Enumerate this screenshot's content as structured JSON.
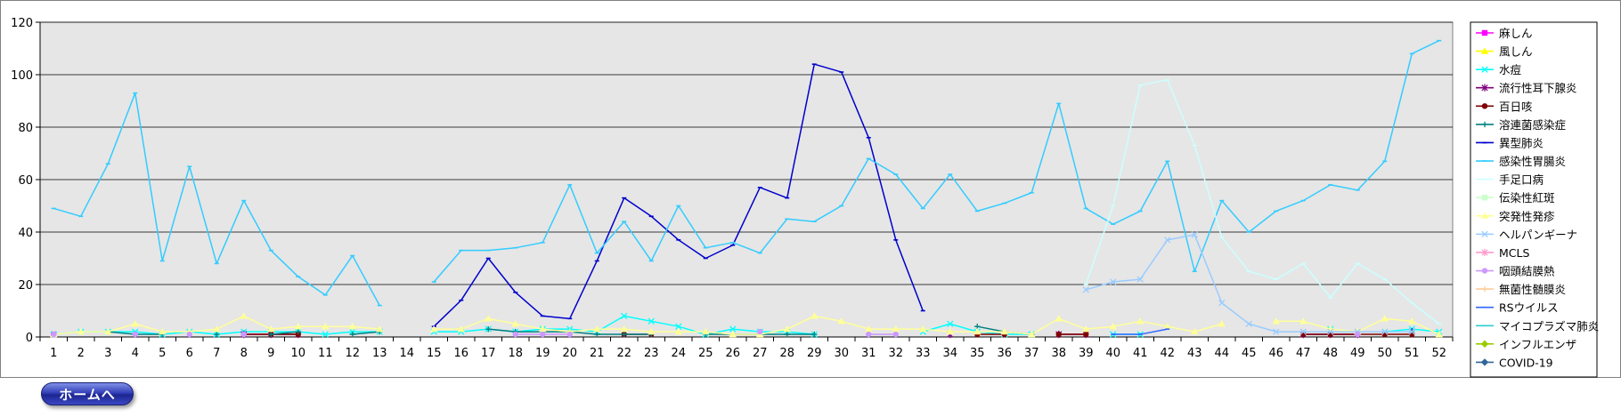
{
  "chart_data": {
    "type": "line",
    "x": [
      1,
      2,
      3,
      4,
      5,
      6,
      7,
      8,
      9,
      10,
      11,
      12,
      13,
      14,
      15,
      16,
      17,
      18,
      19,
      20,
      21,
      22,
      23,
      24,
      25,
      26,
      27,
      28,
      29,
      30,
      31,
      32,
      33,
      34,
      35,
      36,
      37,
      38,
      39,
      40,
      41,
      42,
      43,
      44,
      45,
      46,
      47,
      48,
      49,
      50,
      51,
      52
    ],
    "ylim": [
      0,
      120
    ],
    "yticks": [
      0,
      20,
      40,
      60,
      80,
      100,
      120
    ],
    "grid": true,
    "legend_position": "right",
    "series": [
      {
        "name": "麻しん",
        "color": "#ff00ff",
        "marker": "square",
        "values": [
          1,
          null,
          null,
          null,
          null,
          null,
          null,
          null,
          null,
          null,
          null,
          null,
          null,
          null,
          null,
          null,
          null,
          null,
          null,
          null,
          null,
          null,
          null,
          null,
          null,
          null,
          null,
          null,
          null,
          null,
          null,
          null,
          null,
          null,
          null,
          null,
          null,
          null,
          null,
          null,
          null,
          null,
          null,
          null,
          null,
          null,
          null,
          null,
          null,
          null,
          null,
          null
        ]
      },
      {
        "name": "風しん",
        "color": "#ffff00",
        "marker": "triangle",
        "values": [
          null,
          null,
          null,
          null,
          null,
          null,
          null,
          null,
          null,
          null,
          null,
          null,
          null,
          null,
          null,
          null,
          null,
          null,
          null,
          null,
          null,
          null,
          null,
          null,
          null,
          null,
          null,
          null,
          null,
          null,
          null,
          null,
          null,
          null,
          null,
          null,
          null,
          null,
          null,
          null,
          null,
          null,
          null,
          null,
          null,
          null,
          null,
          null,
          null,
          null,
          null,
          null
        ]
      },
      {
        "name": "水痘",
        "color": "#00ffff",
        "marker": "x",
        "values": [
          1,
          2,
          2,
          2,
          1,
          2,
          1,
          2,
          2,
          2,
          1,
          2,
          2,
          null,
          2,
          2,
          3,
          2,
          3,
          3,
          2,
          8,
          6,
          4,
          1,
          3,
          2,
          2,
          1,
          null,
          null,
          null,
          2,
          5,
          2,
          1,
          1,
          null,
          null,
          1,
          1,
          null,
          null,
          null,
          null,
          null,
          null,
          3,
          null,
          2,
          3,
          2
        ]
      },
      {
        "name": "流行性耳下腺炎",
        "color": "#800080",
        "marker": "star",
        "values": [
          null,
          null,
          null,
          null,
          null,
          null,
          null,
          1,
          1,
          1,
          null,
          null,
          null,
          null,
          null,
          null,
          null,
          null,
          null,
          null,
          null,
          null,
          null,
          null,
          null,
          null,
          null,
          null,
          null,
          null,
          null,
          null,
          null,
          1,
          null,
          null,
          null,
          1,
          1,
          null,
          null,
          null,
          null,
          null,
          null,
          null,
          1,
          1,
          1,
          null,
          2,
          null
        ]
      },
      {
        "name": "百日咳",
        "color": "#800000",
        "marker": "circle",
        "values": [
          null,
          null,
          null,
          null,
          null,
          null,
          null,
          1,
          1,
          1,
          null,
          null,
          null,
          null,
          null,
          null,
          null,
          null,
          null,
          null,
          null,
          1,
          1,
          null,
          null,
          null,
          null,
          null,
          null,
          null,
          null,
          null,
          null,
          null,
          1,
          1,
          null,
          1,
          1,
          null,
          null,
          null,
          null,
          null,
          null,
          null,
          1,
          1,
          1,
          1,
          1,
          null
        ]
      },
      {
        "name": "溶連菌感染症",
        "color": "#008080",
        "marker": "plus",
        "values": [
          null,
          null,
          2,
          1,
          1,
          null,
          1,
          null,
          1,
          2,
          null,
          1,
          2,
          null,
          null,
          null,
          3,
          2,
          2,
          2,
          1,
          1,
          1,
          null,
          1,
          1,
          1,
          1,
          1,
          null,
          null,
          null,
          null,
          null,
          4,
          2,
          1,
          null,
          null,
          null,
          null,
          null,
          null,
          null,
          null,
          null,
          null,
          null,
          null,
          null,
          null,
          null
        ]
      },
      {
        "name": "異型肺炎",
        "color": "#0000cd",
        "marker": "dash",
        "values": [
          null,
          null,
          null,
          null,
          null,
          null,
          null,
          null,
          null,
          null,
          null,
          null,
          null,
          null,
          4,
          14,
          30,
          17,
          8,
          7,
          29,
          53,
          46,
          37,
          30,
          35,
          57,
          53,
          104,
          101,
          76,
          37,
          10,
          null,
          null,
          null,
          null,
          null,
          null,
          null,
          null,
          null,
          null,
          null,
          null,
          null,
          null,
          null,
          null,
          null,
          null,
          null
        ]
      },
      {
        "name": "感染性胃腸炎",
        "color": "#33ccff",
        "marker": "dash",
        "values": [
          49,
          46,
          66,
          93,
          29,
          65,
          28,
          52,
          33,
          23,
          16,
          31,
          12,
          null,
          21,
          33,
          33,
          34,
          36,
          58,
          32,
          44,
          29,
          50,
          34,
          36,
          32,
          45,
          44,
          50,
          68,
          62,
          49,
          62,
          48,
          51,
          55,
          89,
          49,
          43,
          48,
          67,
          25,
          52,
          40,
          48,
          52,
          58,
          56,
          67,
          108,
          113
        ]
      },
      {
        "name": "手足口病",
        "color": "#ccffff",
        "marker": "dash",
        "values": [
          null,
          null,
          null,
          null,
          null,
          null,
          null,
          null,
          null,
          null,
          null,
          null,
          null,
          null,
          null,
          null,
          null,
          null,
          null,
          null,
          null,
          null,
          null,
          null,
          null,
          null,
          null,
          null,
          null,
          null,
          null,
          null,
          null,
          null,
          null,
          null,
          null,
          null,
          20,
          50,
          96,
          98,
          73,
          38,
          25,
          22,
          28,
          15,
          28,
          22,
          13,
          5
        ]
      },
      {
        "name": "伝染性紅斑",
        "color": "#ccffcc",
        "marker": "square",
        "values": [
          null,
          null,
          null,
          null,
          null,
          null,
          null,
          null,
          null,
          null,
          null,
          null,
          null,
          null,
          null,
          null,
          null,
          null,
          null,
          null,
          null,
          null,
          null,
          null,
          null,
          null,
          null,
          null,
          null,
          null,
          null,
          null,
          null,
          null,
          null,
          null,
          null,
          null,
          null,
          null,
          null,
          null,
          null,
          null,
          null,
          null,
          null,
          null,
          null,
          null,
          null,
          null
        ]
      },
      {
        "name": "突発性発疹",
        "color": "#ffff99",
        "marker": "triangle",
        "values": [
          1,
          2,
          2,
          5,
          2,
          2,
          3,
          8,
          3,
          4,
          4,
          4,
          3,
          null,
          3,
          3,
          7,
          5,
          3,
          2,
          3,
          3,
          2,
          2,
          2,
          1,
          1,
          3,
          8,
          6,
          3,
          3,
          3,
          2,
          2,
          2,
          1,
          7,
          3,
          4,
          6,
          4,
          2,
          5,
          null,
          6,
          6,
          3,
          2,
          7,
          6,
          1
        ]
      },
      {
        "name": "ヘルパンギーナ",
        "color": "#99ccff",
        "marker": "x",
        "values": [
          null,
          null,
          null,
          null,
          null,
          null,
          null,
          null,
          null,
          null,
          null,
          null,
          null,
          null,
          null,
          null,
          null,
          null,
          null,
          null,
          null,
          null,
          null,
          null,
          null,
          null,
          null,
          null,
          null,
          null,
          null,
          null,
          null,
          null,
          null,
          null,
          null,
          null,
          18,
          21,
          22,
          37,
          39,
          13,
          5,
          2,
          2,
          2,
          2,
          2,
          2,
          null
        ]
      },
      {
        "name": "MCLS",
        "color": "#ff99cc",
        "marker": "star",
        "values": [
          null,
          null,
          null,
          null,
          null,
          null,
          null,
          null,
          null,
          null,
          null,
          null,
          null,
          null,
          null,
          null,
          null,
          null,
          null,
          null,
          null,
          null,
          null,
          null,
          null,
          null,
          null,
          null,
          null,
          null,
          null,
          null,
          null,
          null,
          null,
          null,
          null,
          null,
          null,
          null,
          null,
          null,
          null,
          null,
          null,
          null,
          null,
          null,
          null,
          null,
          null,
          null
        ]
      },
      {
        "name": "咽頭結膜熱",
        "color": "#cc99ff",
        "marker": "circle",
        "values": [
          1,
          null,
          null,
          1,
          null,
          1,
          null,
          1,
          null,
          null,
          null,
          null,
          null,
          null,
          null,
          null,
          null,
          1,
          1,
          1,
          null,
          null,
          null,
          null,
          null,
          null,
          2,
          null,
          null,
          null,
          1,
          1,
          null,
          null,
          null,
          null,
          null,
          null,
          null,
          null,
          null,
          null,
          null,
          null,
          null,
          null,
          null,
          null,
          1,
          null,
          null,
          null
        ]
      },
      {
        "name": "無菌性髄膜炎",
        "color": "#ffcc99",
        "marker": "plus",
        "values": [
          null,
          null,
          null,
          null,
          null,
          null,
          null,
          null,
          null,
          null,
          null,
          null,
          null,
          null,
          null,
          null,
          null,
          null,
          null,
          null,
          null,
          null,
          null,
          null,
          null,
          null,
          null,
          null,
          null,
          null,
          null,
          null,
          null,
          null,
          null,
          null,
          null,
          null,
          null,
          null,
          null,
          null,
          null,
          null,
          null,
          null,
          null,
          null,
          null,
          null,
          null,
          null
        ]
      },
      {
        "name": "RSウイルス",
        "color": "#3366ff",
        "marker": "dash",
        "values": [
          null,
          null,
          null,
          null,
          null,
          null,
          null,
          null,
          null,
          null,
          null,
          null,
          null,
          null,
          null,
          null,
          null,
          null,
          null,
          null,
          null,
          null,
          null,
          null,
          null,
          null,
          null,
          null,
          null,
          null,
          null,
          null,
          null,
          null,
          null,
          null,
          null,
          null,
          null,
          1,
          1,
          3,
          null,
          null,
          null,
          null,
          null,
          null,
          null,
          null,
          null,
          null
        ]
      },
      {
        "name": "マイコプラズマ肺炎",
        "color": "#33cccc",
        "marker": "dash",
        "values": [
          null,
          null,
          null,
          null,
          null,
          null,
          null,
          null,
          null,
          null,
          null,
          null,
          null,
          null,
          null,
          null,
          null,
          null,
          null,
          null,
          null,
          null,
          null,
          null,
          null,
          null,
          null,
          null,
          null,
          null,
          null,
          null,
          null,
          null,
          null,
          null,
          null,
          null,
          null,
          null,
          null,
          null,
          null,
          null,
          null,
          null,
          null,
          null,
          null,
          null,
          null,
          null
        ]
      },
      {
        "name": "インフルエンザ",
        "color": "#99cc00",
        "marker": "diamond",
        "values": [
          null,
          null,
          null,
          null,
          null,
          null,
          null,
          null,
          null,
          null,
          null,
          null,
          null,
          null,
          null,
          null,
          null,
          null,
          null,
          null,
          null,
          null,
          null,
          null,
          null,
          null,
          null,
          null,
          null,
          null,
          null,
          null,
          null,
          null,
          null,
          null,
          null,
          null,
          null,
          null,
          null,
          null,
          null,
          null,
          null,
          null,
          null,
          null,
          null,
          null,
          null,
          null
        ]
      },
      {
        "name": "COVID-19",
        "color": "#336699",
        "marker": "diamond",
        "values": [
          null,
          null,
          null,
          null,
          null,
          null,
          null,
          null,
          null,
          null,
          null,
          null,
          null,
          null,
          null,
          null,
          null,
          null,
          null,
          null,
          null,
          null,
          null,
          null,
          null,
          null,
          null,
          null,
          null,
          null,
          null,
          null,
          null,
          null,
          null,
          null,
          null,
          null,
          null,
          null,
          null,
          null,
          null,
          null,
          null,
          null,
          null,
          null,
          null,
          null,
          null,
          null
        ]
      }
    ]
  },
  "home_button": {
    "label": "ホームへ"
  },
  "colors": {
    "plot_background": "#e6e6e6",
    "gridline": "#000000",
    "button": "#2a36a8"
  }
}
